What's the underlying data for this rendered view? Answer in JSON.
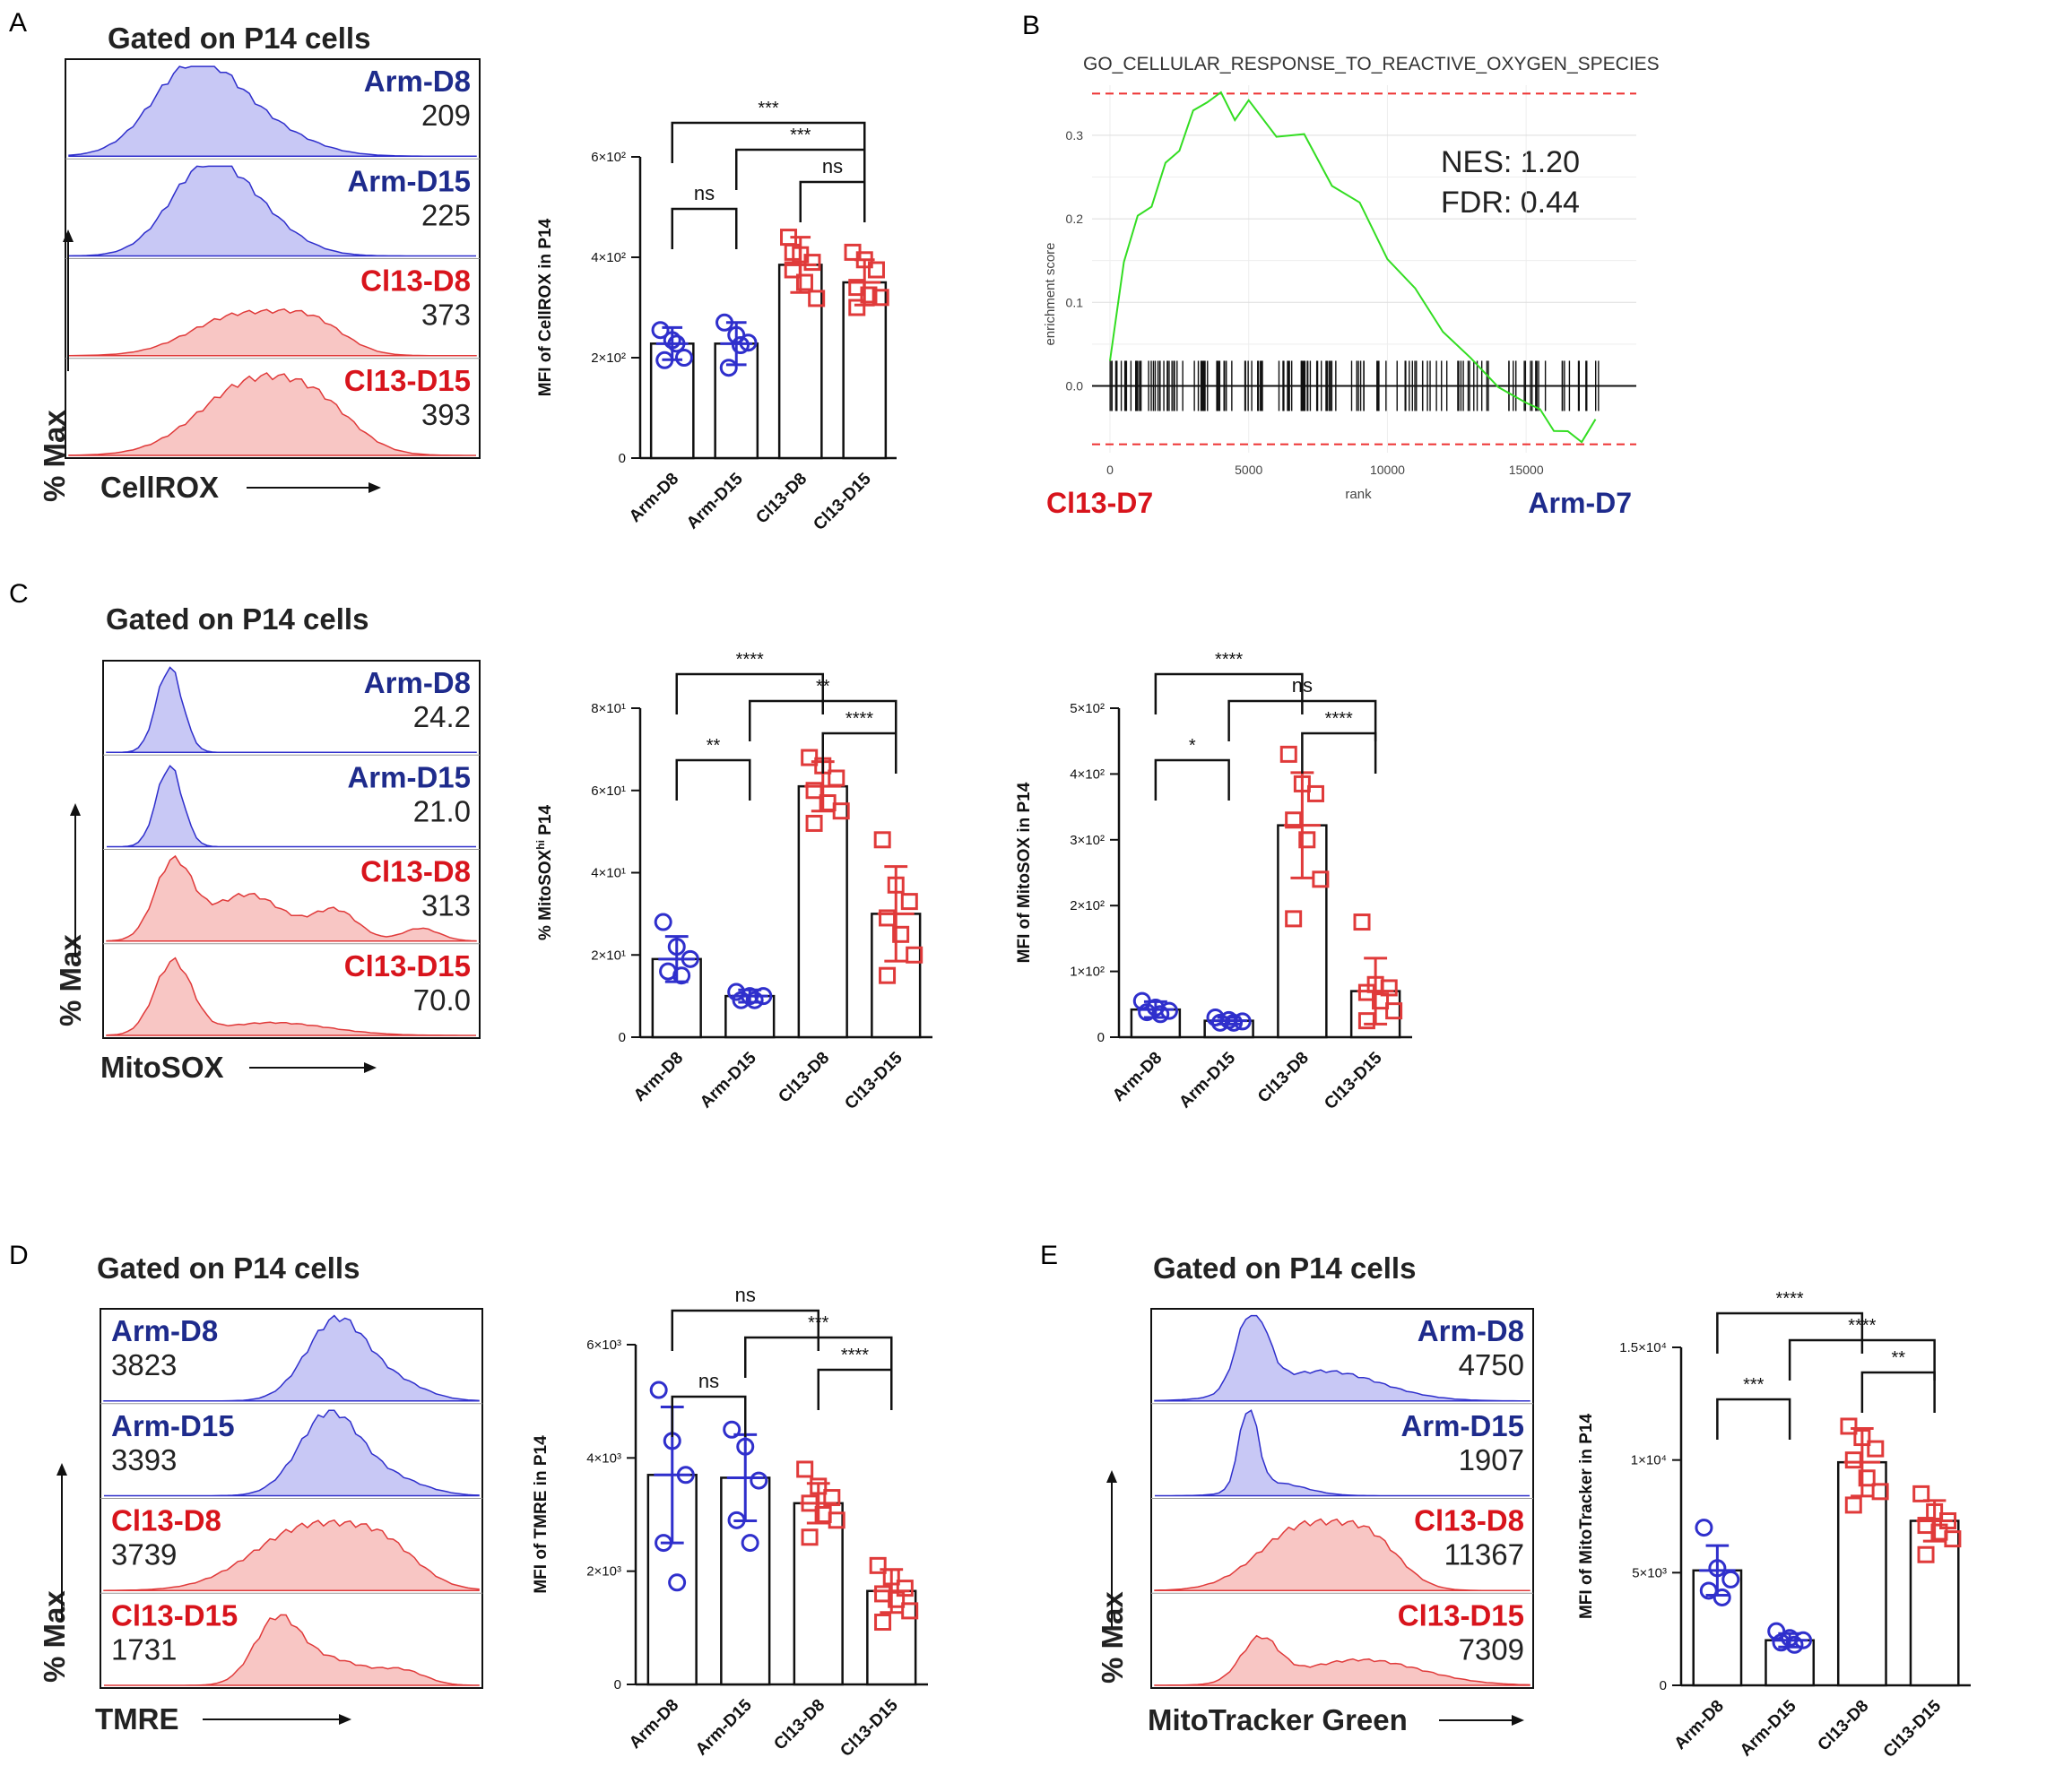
{
  "colors": {
    "arm": "#1e2b8c",
    "cl13": "#d8141c",
    "arm_fill": "#c8c8f5",
    "cl13_fill": "#f8c6c4",
    "arm_line": "#2f2fcc",
    "cl13_line": "#e03a3a",
    "gsea_line": "#33dd22",
    "gsea_ref": "#ee3333"
  },
  "panels": {
    "A": {
      "letter": "A",
      "gate_title": "Gated on P14 cells",
      "ylabel": "% Max",
      "xlabel": "CellROX",
      "histograms": [
        {
          "group": "Arm-D8",
          "value": "209",
          "color": "arm"
        },
        {
          "group": "Arm-D15",
          "value": "225",
          "color": "arm"
        },
        {
          "group": "Cl13-D8",
          "value": "373",
          "color": "cl13"
        },
        {
          "group": "Cl13-D15",
          "value": "393",
          "color": "cl13"
        }
      ]
    },
    "B": {
      "letter": "B",
      "title": "GO_CELLULAR_RESPONSE_TO_REACTIVE_OXYGEN_SPECIES",
      "ylabel": "enrichment score",
      "xlabel": "rank",
      "nes": "NES: 1.20",
      "fdr": "FDR: 0.44",
      "left_label": "Cl13-D7",
      "right_label": "Arm-D7",
      "yticks": [
        "0.0",
        "0.1",
        "0.2",
        "0.3"
      ],
      "xticks": [
        "0",
        "5000",
        "10000",
        "15000"
      ]
    },
    "C": {
      "letter": "C",
      "gate_title": "Gated on P14 cells",
      "ylabel": "% Max",
      "xlabel": "MitoSOX",
      "histograms": [
        {
          "group": "Arm-D8",
          "value": "24.2",
          "color": "arm"
        },
        {
          "group": "Arm-D15",
          "value": "21.0",
          "color": "arm"
        },
        {
          "group": "Cl13-D8",
          "value": "313",
          "color": "cl13"
        },
        {
          "group": "Cl13-D15",
          "value": "70.0",
          "color": "cl13"
        }
      ]
    },
    "D": {
      "letter": "D",
      "gate_title": "Gated on P14 cells",
      "ylabel": "% Max",
      "xlabel": "TMRE",
      "histograms": [
        {
          "group": "Arm-D8",
          "value": "3823",
          "color": "arm"
        },
        {
          "group": "Arm-D15",
          "value": "3393",
          "color": "arm"
        },
        {
          "group": "Cl13-D8",
          "value": "3739",
          "color": "cl13"
        },
        {
          "group": "Cl13-D15",
          "value": "1731",
          "color": "cl13"
        }
      ]
    },
    "E": {
      "letter": "E",
      "gate_title": "Gated on P14 cells",
      "ylabel": "% Max",
      "xlabel": "MitoTracker Green",
      "histograms": [
        {
          "group": "Arm-D8",
          "value": "4750",
          "color": "arm"
        },
        {
          "group": "Arm-D15",
          "value": "1907",
          "color": "arm"
        },
        {
          "group": "Cl13-D8",
          "value": "11367",
          "color": "cl13"
        },
        {
          "group": "Cl13-D15",
          "value": "7309",
          "color": "cl13"
        }
      ]
    }
  },
  "chart_data": [
    {
      "id": "A_bar",
      "type": "bar",
      "ylabel": "MFI of CellROX in P14",
      "categories": [
        "Arm-D8",
        "Arm-D15",
        "Cl13-D8",
        "Cl13-D15"
      ],
      "values": [
        228,
        228,
        385,
        350
      ],
      "errors": [
        32,
        42,
        55,
        45
      ],
      "ylim": [
        0,
        600
      ],
      "yticks": [
        {
          "v": 0,
          "t": "0"
        },
        {
          "v": 200,
          "t": "2×10²"
        },
        {
          "v": 400,
          "t": "4×10²"
        },
        {
          "v": 600,
          "t": "6×10²"
        }
      ],
      "points": [
        [
          255,
          235,
          200,
          195,
          228
        ],
        [
          270,
          245,
          230,
          180,
          225
        ],
        [
          440,
          405,
          390,
          375,
          350,
          318,
          410
        ],
        [
          410,
          395,
          375,
          340,
          325,
          320,
          300
        ]
      ],
      "comparisons": [
        {
          "a": 0,
          "b": 3,
          "label": "***",
          "level": 4
        },
        {
          "a": 1,
          "b": 3,
          "label": "***",
          "level": 3
        },
        {
          "a": 2,
          "b": 3,
          "label": "ns",
          "level": 2
        },
        {
          "a": 0,
          "b": 1,
          "label": "ns",
          "level": 1
        }
      ]
    },
    {
      "id": "C_bar1",
      "type": "bar",
      "ylabel": "% MitoSOX^hi P14",
      "categories": [
        "Arm-D8",
        "Arm-D15",
        "Cl13-D8",
        "Cl13-D15"
      ],
      "values": [
        19,
        10,
        61,
        30
      ],
      "errors": [
        5.5,
        1.5,
        6,
        11.5
      ],
      "ylim": [
        0,
        80
      ],
      "yticks": [
        {
          "v": 0,
          "t": "0"
        },
        {
          "v": 20,
          "t": "2×10¹"
        },
        {
          "v": 40,
          "t": "4×10¹"
        },
        {
          "v": 60,
          "t": "6×10¹"
        },
        {
          "v": 80,
          "t": "8×10¹"
        }
      ],
      "points": [
        [
          28,
          22,
          19,
          16,
          15
        ],
        [
          11,
          10,
          10,
          9,
          9
        ],
        [
          68,
          66,
          63,
          60,
          57,
          55,
          52
        ],
        [
          48,
          37,
          33,
          29,
          25,
          20,
          15
        ]
      ],
      "comparisons": [
        {
          "a": 0,
          "b": 2,
          "label": "****",
          "level": 4
        },
        {
          "a": 1,
          "b": 3,
          "label": "**",
          "level": 3
        },
        {
          "a": 2,
          "b": 3,
          "label": "****",
          "level": 2
        },
        {
          "a": 0,
          "b": 1,
          "label": "**",
          "level": 1
        }
      ]
    },
    {
      "id": "C_bar2",
      "type": "bar",
      "ylabel": "MFI of MitoSOX in P14",
      "categories": [
        "Arm-D8",
        "Arm-D15",
        "Cl13-D8",
        "Cl13-D15"
      ],
      "values": [
        42,
        25,
        322,
        70
      ],
      "errors": [
        12,
        5,
        80,
        50
      ],
      "ylim": [
        0,
        500
      ],
      "yticks": [
        {
          "v": 0,
          "t": "0"
        },
        {
          "v": 100,
          "t": "1×10²"
        },
        {
          "v": 200,
          "t": "2×10²"
        },
        {
          "v": 300,
          "t": "3×10²"
        },
        {
          "v": 400,
          "t": "4×10²"
        },
        {
          "v": 500,
          "t": "5×10²"
        }
      ],
      "points": [
        [
          55,
          45,
          40,
          38,
          35
        ],
        [
          30,
          26,
          24,
          22,
          22
        ],
        [
          430,
          385,
          370,
          330,
          300,
          240,
          180
        ],
        [
          175,
          80,
          75,
          68,
          55,
          40,
          25
        ]
      ],
      "comparisons": [
        {
          "a": 0,
          "b": 2,
          "label": "****",
          "level": 4
        },
        {
          "a": 1,
          "b": 3,
          "label": "ns",
          "level": 3
        },
        {
          "a": 2,
          "b": 3,
          "label": "****",
          "level": 2
        },
        {
          "a": 0,
          "b": 1,
          "label": "*",
          "level": 1
        }
      ]
    },
    {
      "id": "D_bar",
      "type": "bar",
      "ylabel": "MFI of TMRE in P14",
      "categories": [
        "Arm-D8",
        "Arm-D15",
        "Cl13-D8",
        "Cl13-D15"
      ],
      "values": [
        3700,
        3650,
        3200,
        1650
      ],
      "errors": [
        1200,
        760,
        350,
        380
      ],
      "ylim": [
        0,
        6000
      ],
      "yticks": [
        {
          "v": 0,
          "t": "0"
        },
        {
          "v": 2000,
          "t": "2×10³"
        },
        {
          "v": 4000,
          "t": "4×10³"
        },
        {
          "v": 6000,
          "t": "6×10³"
        }
      ],
      "points": [
        [
          5200,
          4300,
          3700,
          2500,
          1800
        ],
        [
          4500,
          4200,
          3600,
          2900,
          2500
        ],
        [
          3800,
          3500,
          3300,
          3200,
          3000,
          2900,
          2600
        ],
        [
          2100,
          1900,
          1700,
          1600,
          1500,
          1300,
          1100
        ]
      ],
      "comparisons": [
        {
          "a": 0,
          "b": 2,
          "label": "ns",
          "level": 4
        },
        {
          "a": 1,
          "b": 3,
          "label": "***",
          "level": 3
        },
        {
          "a": 2,
          "b": 3,
          "label": "****",
          "level": 2
        },
        {
          "a": 0,
          "b": 1,
          "label": "ns",
          "level": 1
        }
      ]
    },
    {
      "id": "E_bar",
      "type": "bar",
      "ylabel": "MFI of MitoTracker in P14",
      "categories": [
        "Arm-D8",
        "Arm-D15",
        "Cl13-D8",
        "Cl13-D15"
      ],
      "values": [
        5100,
        2000,
        9900,
        7300
      ],
      "errors": [
        1100,
        300,
        1500,
        900
      ],
      "ylim": [
        0,
        15000
      ],
      "yticks": [
        {
          "v": 0,
          "t": "0"
        },
        {
          "v": 5000,
          "t": "5×10³"
        },
        {
          "v": 10000,
          "t": "1×10⁴"
        },
        {
          "v": 15000,
          "t": "1.5×10⁴"
        }
      ],
      "points": [
        [
          7000,
          5200,
          4700,
          4200,
          3900
        ],
        [
          2400,
          2100,
          2000,
          1900,
          1800
        ],
        [
          11500,
          11000,
          10500,
          10000,
          9200,
          8600,
          8000
        ],
        [
          8500,
          7700,
          7300,
          7100,
          6800,
          6500,
          5800
        ]
      ],
      "comparisons": [
        {
          "a": 0,
          "b": 2,
          "label": "****",
          "level": 4
        },
        {
          "a": 1,
          "b": 3,
          "label": "****",
          "level": 3
        },
        {
          "a": 2,
          "b": 3,
          "label": "**",
          "level": 2
        },
        {
          "a": 0,
          "b": 1,
          "label": "***",
          "level": 1
        }
      ]
    },
    {
      "id": "B_gsea",
      "type": "line",
      "title": "GO_CELLULAR_RESPONSE_TO_REACTIVE_OXYGEN_SPECIES",
      "xlabel": "rank",
      "ylabel": "enrichment score",
      "xlim": [
        0,
        18000
      ],
      "ylim": [
        -0.08,
        0.36
      ],
      "x": [
        0,
        500,
        1000,
        1500,
        2000,
        2500,
        3000,
        3500,
        4000,
        4500,
        5000,
        6000,
        7000,
        8000,
        9000,
        10000,
        11000,
        12000,
        13000,
        14000,
        15000,
        15500,
        16000,
        16500,
        17000,
        17500
      ],
      "y": [
        0.03,
        0.15,
        0.2,
        0.22,
        0.26,
        0.29,
        0.32,
        0.35,
        0.34,
        0.33,
        0.33,
        0.31,
        0.29,
        0.25,
        0.21,
        0.16,
        0.11,
        0.07,
        0.03,
        0.0,
        -0.02,
        -0.03,
        -0.05,
        -0.06,
        -0.06,
        -0.04
      ],
      "ref_max": 0.35,
      "ref_min": -0.07
    }
  ]
}
